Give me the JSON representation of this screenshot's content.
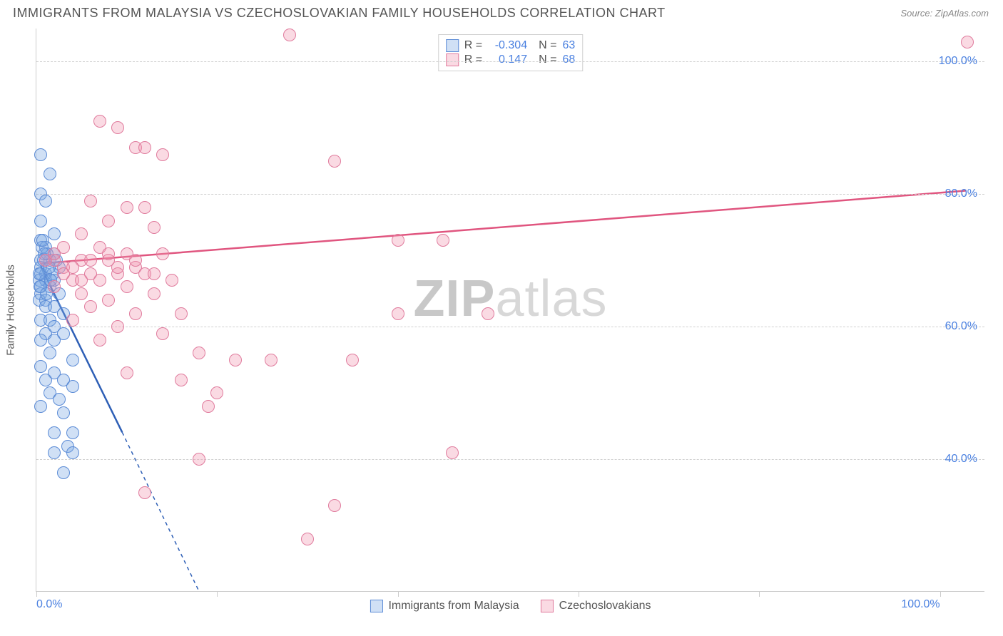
{
  "title": "IMMIGRANTS FROM MALAYSIA VS CZECHOSLOVAKIAN FAMILY HOUSEHOLDS CORRELATION CHART",
  "source": "Source: ZipAtlas.com",
  "ylabel": "Family Households",
  "watermark_zip": "ZIP",
  "watermark_atlas": "atlas",
  "chart": {
    "type": "scatter",
    "xlim": [
      0,
      105
    ],
    "ylim": [
      20,
      105
    ],
    "y_ticks": [
      40,
      60,
      80,
      100
    ],
    "y_tick_labels": [
      "40.0%",
      "60.0%",
      "80.0%",
      "100.0%"
    ],
    "x_ticks": [
      0,
      20,
      40,
      60,
      80,
      100
    ],
    "x_tick_labels_shown": {
      "0": "0.0%",
      "100": "100.0%"
    },
    "grid_color": "#d0d0d0",
    "axis_color": "#cccccc",
    "tick_label_color": "#4a80e0",
    "tick_fontsize": 16,
    "background_color": "#ffffff",
    "series": [
      {
        "id": "blue",
        "label": "Immigrants from Malaysia",
        "fill": "rgba(120,165,225,0.35)",
        "stroke": "#5b8bd6",
        "trend": {
          "x1": 0.5,
          "y1": 69,
          "x2": 9.5,
          "y2": 44,
          "color": "#2e5fb6",
          "width": 2.5,
          "dash_after": {
            "x1": 9.5,
            "y1": 44,
            "x2": 18,
            "y2": 20
          }
        },
        "stats": {
          "R": "-0.304",
          "N": "63"
        },
        "points": [
          [
            0.5,
            86
          ],
          [
            1.5,
            83
          ],
          [
            0.5,
            80
          ],
          [
            1,
            79
          ],
          [
            0.5,
            76
          ],
          [
            2,
            74
          ],
          [
            0.5,
            73
          ],
          [
            1,
            72
          ],
          [
            2,
            71
          ],
          [
            0.5,
            70
          ],
          [
            1.5,
            70
          ],
          [
            0.5,
            69
          ],
          [
            2.5,
            69
          ],
          [
            1,
            68
          ],
          [
            0.5,
            68
          ],
          [
            0.3,
            67
          ],
          [
            1,
            67
          ],
          [
            2,
            67
          ],
          [
            0.5,
            66
          ],
          [
            1.5,
            66
          ],
          [
            0.5,
            65
          ],
          [
            2.5,
            65
          ],
          [
            0.3,
            64
          ],
          [
            1,
            64
          ],
          [
            1,
            63
          ],
          [
            2,
            63
          ],
          [
            3,
            62
          ],
          [
            0.5,
            61
          ],
          [
            1.5,
            61
          ],
          [
            2,
            60
          ],
          [
            1,
            59
          ],
          [
            3,
            59
          ],
          [
            0.5,
            58
          ],
          [
            2,
            58
          ],
          [
            1.5,
            56
          ],
          [
            4,
            55
          ],
          [
            0.5,
            54
          ],
          [
            2,
            53
          ],
          [
            1,
            52
          ],
          [
            3,
            52
          ],
          [
            4,
            51
          ],
          [
            1.5,
            50
          ],
          [
            2.5,
            49
          ],
          [
            0.5,
            48
          ],
          [
            3,
            47
          ],
          [
            4,
            44
          ],
          [
            2,
            44
          ],
          [
            3.5,
            42
          ],
          [
            2,
            41
          ],
          [
            4,
            41
          ],
          [
            3,
            38
          ],
          [
            0.3,
            68
          ],
          [
            0.8,
            70
          ],
          [
            1.2,
            71
          ],
          [
            0.6,
            72
          ],
          [
            1.8,
            68
          ],
          [
            0.4,
            66
          ],
          [
            2.2,
            70
          ],
          [
            1.4,
            69
          ],
          [
            0.9,
            71
          ],
          [
            1.6,
            67
          ],
          [
            0.7,
            73
          ],
          [
            1.1,
            65
          ]
        ]
      },
      {
        "id": "pink",
        "label": "Czechoslovakians",
        "fill": "rgba(240,150,175,0.35)",
        "stroke": "#e07b9d",
        "trend": {
          "x1": 0.5,
          "y1": 69.5,
          "x2": 103,
          "y2": 80.5,
          "color": "#e0557f",
          "width": 2.5
        },
        "stats": {
          "R": "0.147",
          "N": "68"
        },
        "points": [
          [
            28,
            104
          ],
          [
            103,
            103
          ],
          [
            7,
            91
          ],
          [
            9,
            90
          ],
          [
            11,
            87
          ],
          [
            12,
            87
          ],
          [
            14,
            86
          ],
          [
            33,
            85
          ],
          [
            6,
            79
          ],
          [
            10,
            78
          ],
          [
            12,
            78
          ],
          [
            8,
            76
          ],
          [
            13,
            75
          ],
          [
            5,
            74
          ],
          [
            40,
            73
          ],
          [
            45,
            73
          ],
          [
            3,
            72
          ],
          [
            7,
            72
          ],
          [
            10,
            71
          ],
          [
            14,
            71
          ],
          [
            2,
            70
          ],
          [
            5,
            70
          ],
          [
            8,
            70
          ],
          [
            11,
            69
          ],
          [
            3,
            69
          ],
          [
            6,
            68
          ],
          [
            9,
            68
          ],
          [
            12,
            68
          ],
          [
            4,
            67
          ],
          [
            7,
            67
          ],
          [
            15,
            67
          ],
          [
            2,
            66
          ],
          [
            10,
            66
          ],
          [
            13,
            65
          ],
          [
            5,
            65
          ],
          [
            8,
            64
          ],
          [
            6,
            63
          ],
          [
            16,
            62
          ],
          [
            11,
            62
          ],
          [
            40,
            62
          ],
          [
            50,
            62
          ],
          [
            4,
            61
          ],
          [
            9,
            60
          ],
          [
            14,
            59
          ],
          [
            7,
            58
          ],
          [
            18,
            56
          ],
          [
            22,
            55
          ],
          [
            26,
            55
          ],
          [
            35,
            55
          ],
          [
            10,
            53
          ],
          [
            16,
            52
          ],
          [
            20,
            50
          ],
          [
            19,
            48
          ],
          [
            18,
            40
          ],
          [
            46,
            41
          ],
          [
            12,
            35
          ],
          [
            33,
            33
          ],
          [
            30,
            28
          ],
          [
            1,
            70
          ],
          [
            2,
            71
          ],
          [
            3,
            68
          ],
          [
            4,
            69
          ],
          [
            5,
            67
          ],
          [
            6,
            70
          ],
          [
            8,
            71
          ],
          [
            9,
            69
          ],
          [
            11,
            70
          ],
          [
            13,
            68
          ]
        ]
      }
    ]
  },
  "legend_top": {
    "R_label": "R =",
    "N_label": "N ="
  }
}
